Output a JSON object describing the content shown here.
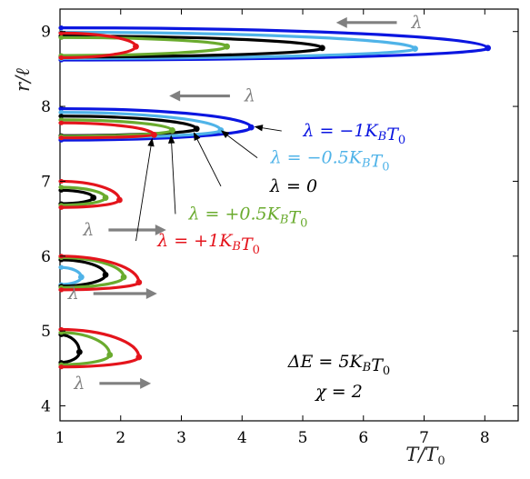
{
  "chart_data": {
    "type": "line",
    "xlabel": "T/T₀",
    "ylabel": "r/ℓ",
    "xlim": [
      1,
      8.55
    ],
    "ylim": [
      3.8,
      9.3
    ],
    "xticks": [
      "1",
      "2",
      "3",
      "4",
      "5",
      "6",
      "7",
      "8"
    ],
    "yticks": [
      "4",
      "5",
      "6",
      "7",
      "8",
      "9"
    ],
    "grid": false,
    "colors": {
      "lambda_-1": "#0b16e0",
      "lambda_-0.5": "#4fb3e8",
      "lambda_0": "#000000",
      "lambda_+0.5": "#6aab2e",
      "lambda_+1": "#e4141c",
      "arrow": "#808080"
    },
    "lambda_label": "λ",
    "parameters": [
      "ΔE = 5K_BT₀",
      "χ = 2"
    ],
    "series": [
      {
        "name": "λ = −1K_BT₀",
        "color": "#0b16e0",
        "loops": [
          {
            "top": 9.05,
            "bottom": 8.62,
            "tip_x": 8.05,
            "tip_y": 8.78
          },
          {
            "top": 7.97,
            "bottom": 7.55,
            "tip_x": 4.15,
            "tip_y": 7.72
          }
        ]
      },
      {
        "name": "λ = −0.5K_BT₀",
        "color": "#4fb3e8",
        "loops": [
          {
            "top": 8.99,
            "bottom": 8.64,
            "tip_x": 6.85,
            "tip_y": 8.77
          },
          {
            "top": 7.92,
            "bottom": 7.58,
            "tip_x": 3.65,
            "tip_y": 7.68
          },
          {
            "top": 5.85,
            "bottom": 5.62,
            "tip_x": 1.35,
            "tip_y": 5.72
          }
        ]
      },
      {
        "name": "λ = 0",
        "color": "#000000",
        "loops": [
          {
            "top": 8.94,
            "bottom": 8.66,
            "tip_x": 5.32,
            "tip_y": 8.78
          },
          {
            "top": 7.87,
            "bottom": 7.61,
            "tip_x": 3.25,
            "tip_y": 7.7
          },
          {
            "top": 6.88,
            "bottom": 6.7,
            "tip_x": 1.55,
            "tip_y": 6.78
          },
          {
            "top": 5.95,
            "bottom": 5.6,
            "tip_x": 1.75,
            "tip_y": 5.75
          },
          {
            "top": 4.95,
            "bottom": 4.58,
            "tip_x": 1.32,
            "tip_y": 4.72
          }
        ]
      },
      {
        "name": "λ = +0.5K_BT₀",
        "color": "#6aab2e",
        "loops": [
          {
            "top": 8.92,
            "bottom": 8.68,
            "tip_x": 3.75,
            "tip_y": 8.8
          },
          {
            "top": 7.82,
            "bottom": 7.6,
            "tip_x": 2.85,
            "tip_y": 7.68
          },
          {
            "top": 6.92,
            "bottom": 6.68,
            "tip_x": 1.75,
            "tip_y": 6.78
          },
          {
            "top": 5.98,
            "bottom": 5.58,
            "tip_x": 2.05,
            "tip_y": 5.72
          },
          {
            "top": 4.98,
            "bottom": 4.55,
            "tip_x": 1.82,
            "tip_y": 4.68
          }
        ]
      },
      {
        "name": "λ = +1K_BT₀",
        "color": "#e4141c",
        "loops": [
          {
            "top": 8.98,
            "bottom": 8.65,
            "tip_x": 2.25,
            "tip_y": 8.8
          },
          {
            "top": 7.78,
            "bottom": 7.58,
            "tip_x": 2.55,
            "tip_y": 7.62
          },
          {
            "top": 7.0,
            "bottom": 6.65,
            "tip_x": 1.98,
            "tip_y": 6.75
          },
          {
            "top": 6.0,
            "bottom": 5.55,
            "tip_x": 2.3,
            "tip_y": 5.65
          },
          {
            "top": 5.02,
            "bottom": 4.52,
            "tip_x": 2.3,
            "tip_y": 4.65
          }
        ]
      }
    ],
    "annotations": [
      {
        "text": "λ = −1K_BT₀",
        "color": "#0b16e0",
        "text_x": 5.85,
        "text_y": 7.6,
        "target_x": 4.2,
        "target_y": 7.73
      },
      {
        "text": "λ = −0.5K_BT₀",
        "color": "#4fb3e8",
        "text_x": 5.45,
        "text_y": 7.24,
        "target_x": 3.65,
        "target_y": 7.68
      },
      {
        "text": "λ = 0",
        "color": "#000000",
        "text_x": 4.85,
        "text_y": 6.86,
        "target_x": 3.2,
        "target_y": 7.66
      },
      {
        "text": "λ = +0.5K_BT₀",
        "color": "#6aab2e",
        "text_x": 4.1,
        "text_y": 6.49,
        "target_x": 2.83,
        "target_y": 7.62
      },
      {
        "text": "λ = +1K_BT₀",
        "color": "#e4141c",
        "text_x": 3.45,
        "text_y": 6.13,
        "target_x": 2.52,
        "target_y": 7.58
      }
    ],
    "lambda_arrows": [
      {
        "x_from": 6.55,
        "x_to": 5.55,
        "y": 9.12
      },
      {
        "x_from": 3.8,
        "x_to": 2.8,
        "y": 8.14
      },
      {
        "x_from": 1.8,
        "x_to": 2.75,
        "y": 6.35
      },
      {
        "x_from": 1.55,
        "x_to": 2.6,
        "y": 5.5
      },
      {
        "x_from": 1.65,
        "x_to": 2.5,
        "y": 4.3
      }
    ]
  }
}
